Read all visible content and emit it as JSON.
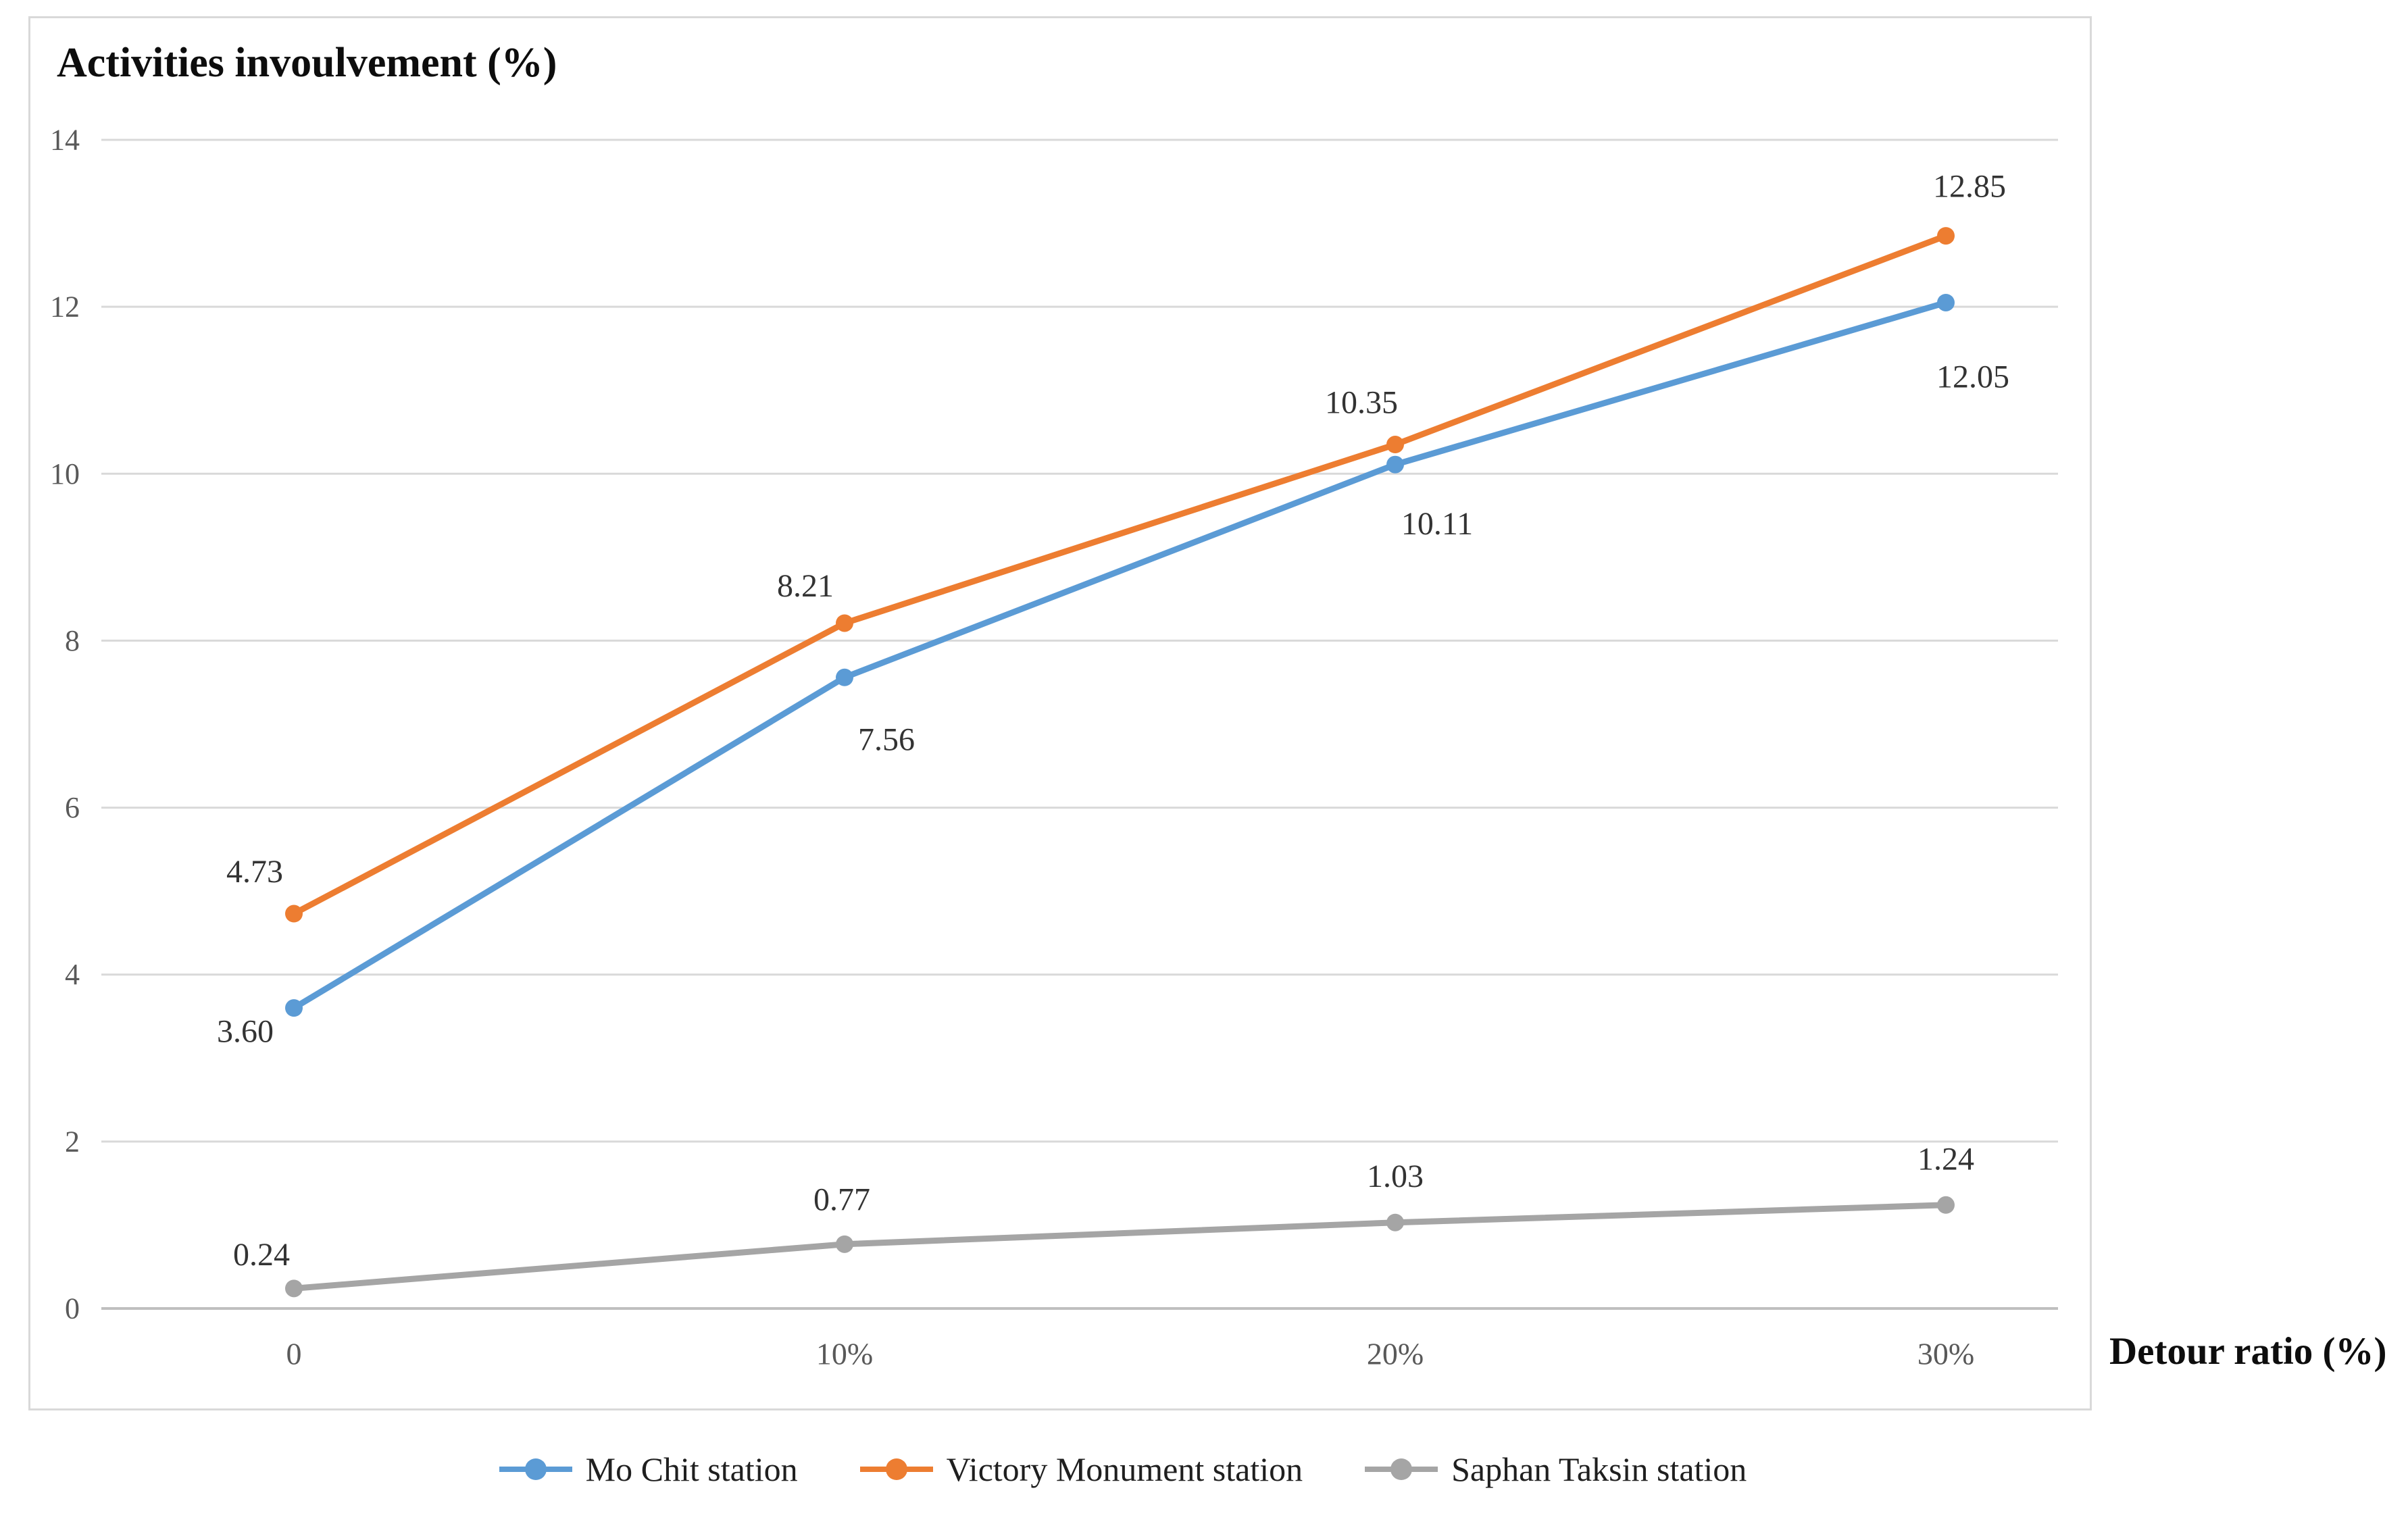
{
  "title": "Activities invoulvement (%)",
  "x_axis_title": "Detour ratio (%)",
  "chart_data": {
    "type": "line",
    "title": "Activities invoulvement (%)",
    "xlabel": "Detour ratio (%)",
    "ylabel": "Activities invoulvement (%)",
    "categories": [
      "0",
      "10%",
      "20%",
      "30%"
    ],
    "series": [
      {
        "name": "Mo Chit station",
        "color": "#5B9BD5",
        "values": [
          3.6,
          7.56,
          10.11,
          12.05
        ]
      },
      {
        "name": "Victory Monument station",
        "color": "#ED7D31",
        "values": [
          4.73,
          8.21,
          10.35,
          12.85
        ]
      },
      {
        "name": "Saphan Taksin station",
        "color": "#A5A5A5",
        "values": [
          0.24,
          0.77,
          1.03,
          1.24
        ]
      }
    ],
    "ylim": [
      0,
      14
    ],
    "yticks": [
      0,
      2,
      4,
      6,
      8,
      10,
      12,
      14
    ],
    "grid": true,
    "legend_position": "bottom",
    "data_labels": true,
    "data_label_decimals": 2,
    "marker": "circle",
    "gridline_color": "#d9d9d9",
    "axis_line_color": "#bfbfbf",
    "tick_label_color": "#595959",
    "data_label_color": "#333333"
  }
}
